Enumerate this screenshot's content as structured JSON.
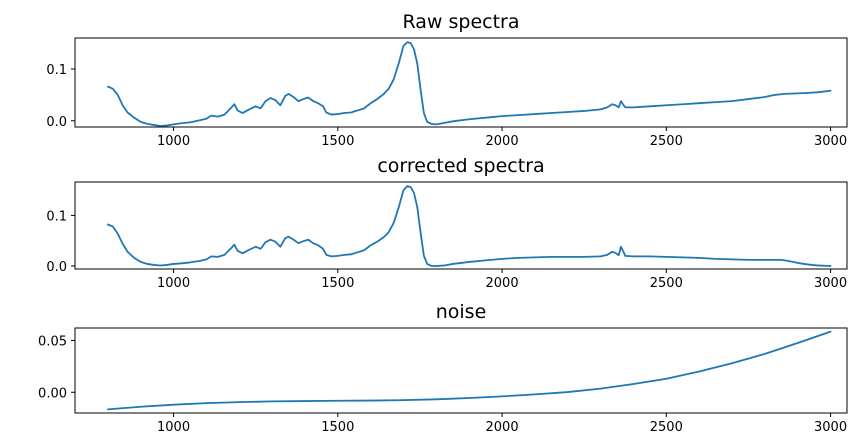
{
  "chart_data": [
    {
      "type": "line",
      "title": "Raw spectra",
      "xlabel": "",
      "ylabel": "",
      "xlim": [
        700,
        3050
      ],
      "ylim": [
        -0.012,
        0.16
      ],
      "xticks": [
        1000,
        1500,
        2000,
        2500,
        3000
      ],
      "xtick_labels": [
        "1000",
        "1500",
        "2000",
        "2500",
        "3000"
      ],
      "yticks": [
        0.0,
        0.1
      ],
      "ytick_labels": [
        "0.0",
        "0.1"
      ],
      "grid": false,
      "color": "#1f77b4",
      "series": [
        {
          "points": [
            [
              800,
              0.066
            ],
            [
              815,
              0.062
            ],
            [
              830,
              0.05
            ],
            [
              845,
              0.03
            ],
            [
              860,
              0.016
            ],
            [
              880,
              0.006
            ],
            [
              900,
              -0.002
            ],
            [
              920,
              -0.006
            ],
            [
              940,
              -0.008
            ],
            [
              960,
              -0.01
            ],
            [
              980,
              -0.009
            ],
            [
              1000,
              -0.007
            ],
            [
              1020,
              -0.005
            ],
            [
              1050,
              -0.003
            ],
            [
              1080,
              0.001
            ],
            [
              1100,
              0.004
            ],
            [
              1115,
              0.01
            ],
            [
              1135,
              0.008
            ],
            [
              1155,
              0.012
            ],
            [
              1175,
              0.025
            ],
            [
              1185,
              0.032
            ],
            [
              1195,
              0.02
            ],
            [
              1210,
              0.015
            ],
            [
              1230,
              0.022
            ],
            [
              1250,
              0.028
            ],
            [
              1265,
              0.024
            ],
            [
              1280,
              0.038
            ],
            [
              1295,
              0.044
            ],
            [
              1310,
              0.04
            ],
            [
              1325,
              0.03
            ],
            [
              1340,
              0.048
            ],
            [
              1350,
              0.052
            ],
            [
              1365,
              0.046
            ],
            [
              1380,
              0.038
            ],
            [
              1395,
              0.042
            ],
            [
              1410,
              0.045
            ],
            [
              1425,
              0.038
            ],
            [
              1440,
              0.034
            ],
            [
              1455,
              0.028
            ],
            [
              1465,
              0.016
            ],
            [
              1480,
              0.012
            ],
            [
              1500,
              0.013
            ],
            [
              1520,
              0.015
            ],
            [
              1540,
              0.016
            ],
            [
              1560,
              0.02
            ],
            [
              1580,
              0.024
            ],
            [
              1600,
              0.034
            ],
            [
              1620,
              0.042
            ],
            [
              1640,
              0.052
            ],
            [
              1655,
              0.062
            ],
            [
              1670,
              0.08
            ],
            [
              1685,
              0.11
            ],
            [
              1700,
              0.145
            ],
            [
              1712,
              0.152
            ],
            [
              1722,
              0.15
            ],
            [
              1732,
              0.138
            ],
            [
              1742,
              0.11
            ],
            [
              1752,
              0.06
            ],
            [
              1762,
              0.015
            ],
            [
              1772,
              -0.002
            ],
            [
              1785,
              -0.006
            ],
            [
              1800,
              -0.007
            ],
            [
              1825,
              -0.004
            ],
            [
              1850,
              -0.001
            ],
            [
              1900,
              0.003
            ],
            [
              1950,
              0.006
            ],
            [
              2000,
              0.009
            ],
            [
              2050,
              0.011
            ],
            [
              2100,
              0.013
            ],
            [
              2150,
              0.015
            ],
            [
              2200,
              0.017
            ],
            [
              2250,
              0.019
            ],
            [
              2300,
              0.022
            ],
            [
              2320,
              0.026
            ],
            [
              2335,
              0.032
            ],
            [
              2345,
              0.03
            ],
            [
              2355,
              0.026
            ],
            [
              2362,
              0.038
            ],
            [
              2368,
              0.032
            ],
            [
              2375,
              0.026
            ],
            [
              2400,
              0.026
            ],
            [
              2450,
              0.028
            ],
            [
              2500,
              0.03
            ],
            [
              2550,
              0.032
            ],
            [
              2600,
              0.034
            ],
            [
              2650,
              0.036
            ],
            [
              2700,
              0.038
            ],
            [
              2750,
              0.042
            ],
            [
              2800,
              0.046
            ],
            [
              2830,
              0.05
            ],
            [
              2860,
              0.052
            ],
            [
              2900,
              0.053
            ],
            [
              2930,
              0.054
            ],
            [
              2960,
              0.055
            ],
            [
              3000,
              0.058
            ]
          ]
        }
      ]
    },
    {
      "type": "line",
      "title": "corrected spectra",
      "xlabel": "",
      "ylabel": "",
      "xlim": [
        700,
        3050
      ],
      "ylim": [
        -0.006,
        0.166
      ],
      "xticks": [
        1000,
        1500,
        2000,
        2500,
        3000
      ],
      "xtick_labels": [
        "1000",
        "1500",
        "2000",
        "2500",
        "3000"
      ],
      "yticks": [
        0.0,
        0.1
      ],
      "ytick_labels": [
        "0.0",
        "0.1"
      ],
      "grid": false,
      "color": "#1f77b4",
      "series": [
        {
          "points": [
            [
              800,
              0.082
            ],
            [
              815,
              0.078
            ],
            [
              830,
              0.064
            ],
            [
              845,
              0.044
            ],
            [
              860,
              0.028
            ],
            [
              880,
              0.016
            ],
            [
              900,
              0.008
            ],
            [
              920,
              0.004
            ],
            [
              940,
              0.002
            ],
            [
              960,
              0.001
            ],
            [
              980,
              0.002
            ],
            [
              1000,
              0.004
            ],
            [
              1020,
              0.005
            ],
            [
              1050,
              0.007
            ],
            [
              1080,
              0.01
            ],
            [
              1100,
              0.013
            ],
            [
              1115,
              0.019
            ],
            [
              1135,
              0.018
            ],
            [
              1155,
              0.022
            ],
            [
              1175,
              0.035
            ],
            [
              1185,
              0.042
            ],
            [
              1195,
              0.03
            ],
            [
              1210,
              0.025
            ],
            [
              1230,
              0.032
            ],
            [
              1250,
              0.038
            ],
            [
              1265,
              0.034
            ],
            [
              1280,
              0.047
            ],
            [
              1295,
              0.052
            ],
            [
              1310,
              0.048
            ],
            [
              1325,
              0.038
            ],
            [
              1340,
              0.055
            ],
            [
              1350,
              0.058
            ],
            [
              1365,
              0.052
            ],
            [
              1380,
              0.045
            ],
            [
              1395,
              0.049
            ],
            [
              1410,
              0.052
            ],
            [
              1425,
              0.045
            ],
            [
              1440,
              0.041
            ],
            [
              1455,
              0.034
            ],
            [
              1465,
              0.022
            ],
            [
              1480,
              0.019
            ],
            [
              1500,
              0.02
            ],
            [
              1520,
              0.022
            ],
            [
              1540,
              0.023
            ],
            [
              1560,
              0.027
            ],
            [
              1580,
              0.031
            ],
            [
              1600,
              0.041
            ],
            [
              1620,
              0.048
            ],
            [
              1640,
              0.057
            ],
            [
              1655,
              0.067
            ],
            [
              1670,
              0.085
            ],
            [
              1685,
              0.115
            ],
            [
              1700,
              0.15
            ],
            [
              1712,
              0.158
            ],
            [
              1722,
              0.156
            ],
            [
              1732,
              0.144
            ],
            [
              1742,
              0.116
            ],
            [
              1752,
              0.066
            ],
            [
              1762,
              0.02
            ],
            [
              1772,
              0.004
            ],
            [
              1785,
              0.0
            ],
            [
              1800,
              0.0
            ],
            [
              1825,
              0.001
            ],
            [
              1850,
              0.004
            ],
            [
              1900,
              0.008
            ],
            [
              1950,
              0.011
            ],
            [
              2000,
              0.014
            ],
            [
              2050,
              0.016
            ],
            [
              2100,
              0.017
            ],
            [
              2150,
              0.018
            ],
            [
              2200,
              0.018
            ],
            [
              2250,
              0.018
            ],
            [
              2300,
              0.019
            ],
            [
              2320,
              0.022
            ],
            [
              2335,
              0.028
            ],
            [
              2345,
              0.026
            ],
            [
              2355,
              0.021
            ],
            [
              2362,
              0.038
            ],
            [
              2368,
              0.03
            ],
            [
              2375,
              0.02
            ],
            [
              2400,
              0.019
            ],
            [
              2450,
              0.019
            ],
            [
              2500,
              0.018
            ],
            [
              2550,
              0.017
            ],
            [
              2600,
              0.016
            ],
            [
              2650,
              0.014
            ],
            [
              2700,
              0.013
            ],
            [
              2750,
              0.012
            ],
            [
              2800,
              0.012
            ],
            [
              2850,
              0.012
            ],
            [
              2870,
              0.01
            ],
            [
              2900,
              0.006
            ],
            [
              2930,
              0.003
            ],
            [
              2960,
              0.001
            ],
            [
              3000,
              0.0
            ]
          ]
        }
      ]
    },
    {
      "type": "line",
      "title": "noise",
      "xlabel": "",
      "ylabel": "",
      "xlim": [
        700,
        3050
      ],
      "ylim": [
        -0.02,
        0.062
      ],
      "xticks": [
        1000,
        1500,
        2000,
        2500,
        3000
      ],
      "xtick_labels": [
        "1000",
        "1500",
        "2000",
        "2500",
        "3000"
      ],
      "yticks": [
        0.0,
        0.05
      ],
      "ytick_labels": [
        "0.00",
        "0.05"
      ],
      "grid": false,
      "color": "#1f77b4",
      "series": [
        {
          "points": [
            [
              800,
              -0.0165
            ],
            [
              900,
              -0.014
            ],
            [
              1000,
              -0.012
            ],
            [
              1100,
              -0.0105
            ],
            [
              1200,
              -0.0095
            ],
            [
              1300,
              -0.0088
            ],
            [
              1400,
              -0.0085
            ],
            [
              1500,
              -0.0082
            ],
            [
              1600,
              -0.008
            ],
            [
              1700,
              -0.0076
            ],
            [
              1800,
              -0.0068
            ],
            [
              1900,
              -0.0055
            ],
            [
              2000,
              -0.004
            ],
            [
              2100,
              -0.002
            ],
            [
              2200,
              0.0002
            ],
            [
              2300,
              0.0035
            ],
            [
              2400,
              0.008
            ],
            [
              2500,
              0.013
            ],
            [
              2600,
              0.02
            ],
            [
              2700,
              0.028
            ],
            [
              2800,
              0.037
            ],
            [
              2900,
              0.0475
            ],
            [
              3000,
              0.0585
            ]
          ]
        }
      ]
    }
  ]
}
